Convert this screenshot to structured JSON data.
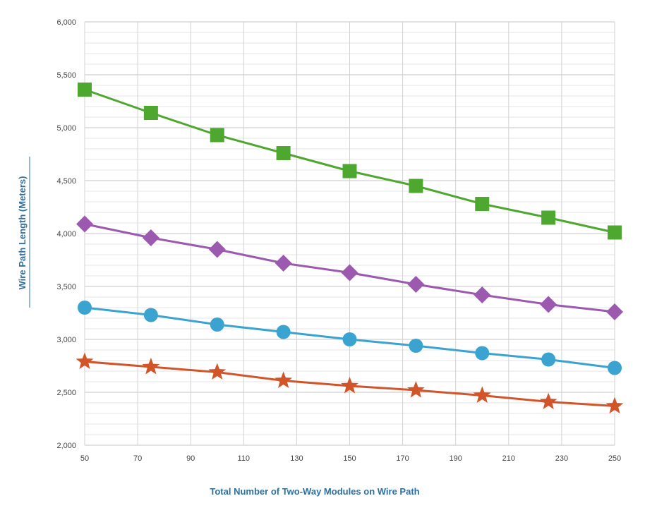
{
  "chart_data": {
    "type": "line",
    "title": "",
    "xlabel": "Total Number of Two-Way Modules on Wire Path",
    "ylabel": "Wire Path Length (Meters)",
    "xlim": [
      50,
      250
    ],
    "ylim": [
      2000,
      6000
    ],
    "x_ticks": [
      50,
      70,
      90,
      110,
      130,
      150,
      170,
      190,
      210,
      230,
      250
    ],
    "y_ticks": [
      2000,
      2500,
      3000,
      3500,
      4000,
      4500,
      5000,
      5500,
      6000
    ],
    "y_tick_labels": [
      "2,000",
      "2,500",
      "3,000",
      "3,500",
      "4,000",
      "4,500",
      "5,000",
      "5,500",
      "6,000"
    ],
    "grid": true,
    "x": [
      50,
      75,
      100,
      125,
      150,
      175,
      200,
      225,
      250
    ],
    "series": [
      {
        "name": "Series (square markers)",
        "marker": "square",
        "color": "#4ea72e",
        "values": [
          5360,
          5140,
          4930,
          4760,
          4590,
          4450,
          4280,
          4150,
          4010
        ]
      },
      {
        "name": "Series (diamond markers)",
        "marker": "diamond",
        "color": "#9b59b0",
        "values": [
          4090,
          3960,
          3850,
          3720,
          3630,
          3520,
          3420,
          3330,
          3260
        ]
      },
      {
        "name": "Series (circle markers)",
        "marker": "circle",
        "color": "#3ba3d0",
        "values": [
          3300,
          3230,
          3140,
          3070,
          3000,
          2940,
          2870,
          2810,
          2730
        ]
      },
      {
        "name": "Series (star markers)",
        "marker": "star",
        "color": "#d2552a",
        "values": [
          2790,
          2740,
          2690,
          2610,
          2560,
          2520,
          2470,
          2410,
          2370
        ]
      }
    ]
  }
}
